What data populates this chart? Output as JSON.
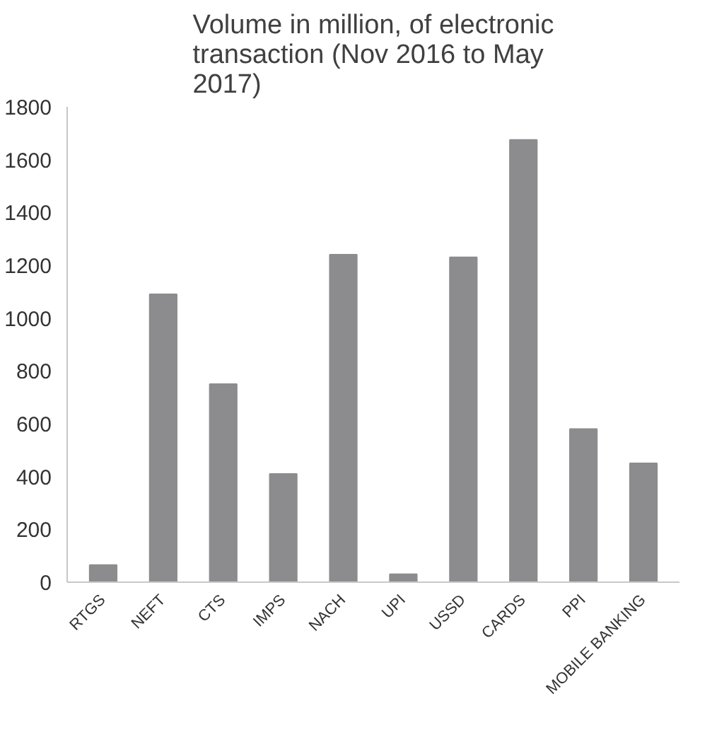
{
  "chart_data": {
    "type": "bar",
    "title": "Volume in million, of electronic transaction (Nov 2016 to May 2017)",
    "categories": [
      "RTGS",
      "NEFT",
      "CTS",
      "IMPS",
      "NACH",
      "UPI",
      "USSD",
      "CARDS",
      "PPI",
      "MOBILE BANKING"
    ],
    "values": [
      65,
      1090,
      750,
      410,
      1240,
      30,
      1230,
      1675,
      580,
      450
    ],
    "color": "#8c8c8e",
    "ylim": [
      0,
      1800
    ],
    "yticks": [
      0,
      200,
      400,
      600,
      800,
      1000,
      1200,
      1400,
      1600,
      1800
    ],
    "grid": false
  }
}
